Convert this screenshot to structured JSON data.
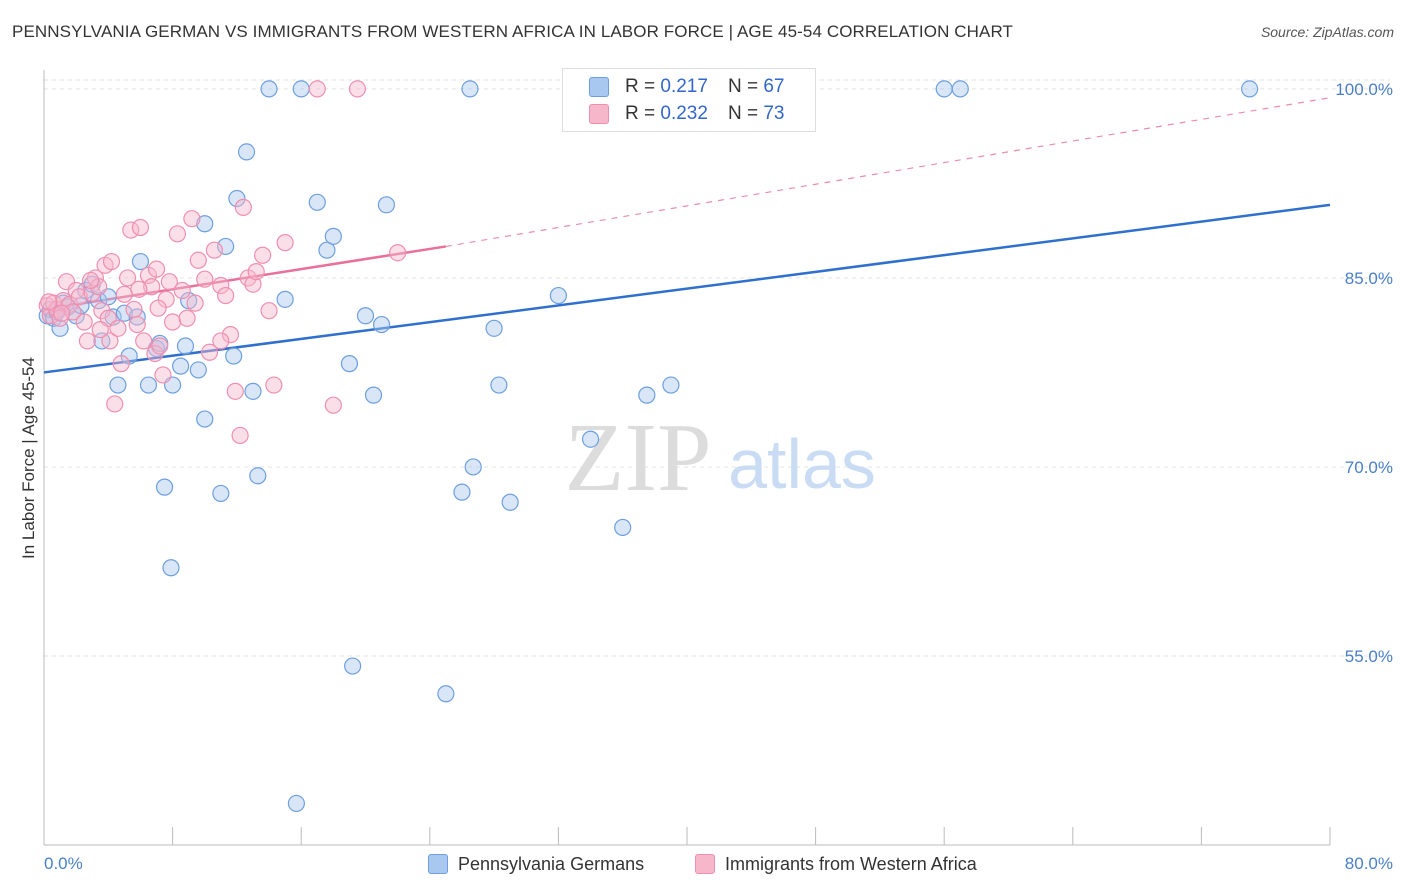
{
  "header": {
    "title": "PENNSYLVANIA GERMAN VS IMMIGRANTS FROM WESTERN AFRICA IN LABOR FORCE | AGE 45-54 CORRELATION CHART",
    "source": "Source: ZipAtlas.com"
  },
  "legend": {
    "r_label": "R =",
    "n_label": "N =",
    "series": [
      {
        "r": "0.217",
        "n": "67"
      },
      {
        "r": "0.232",
        "n": "73"
      }
    ]
  },
  "watermark": {
    "zip": "ZIP",
    "atlas": "atlas"
  },
  "colors": {
    "blue_fill": "#a9c8f0",
    "blue_stroke": "#6d9fe0",
    "blue_line": "#2f6fce",
    "pink_fill": "#f7b7cb",
    "pink_stroke": "#ef8fb0",
    "pink_line": "#e8709a",
    "tick_label": "#4a7fc8",
    "grid": "#e3e3e3"
  },
  "chart_data": {
    "type": "scatter",
    "title": "PENNSYLVANIA GERMAN VS IMMIGRANTS FROM WESTERN AFRICA IN LABOR FORCE | AGE 45-54 CORRELATION CHART",
    "xlabel": "",
    "ylabel": "In Labor Force | Age 45-54",
    "xlim": [
      0,
      80
    ],
    "ylim": [
      40,
      101.5
    ],
    "x_tick_labels": [
      "0.0%",
      "80.0%"
    ],
    "y_ticks": [
      55,
      70,
      85,
      100
    ],
    "y_tick_labels": [
      "55.0%",
      "70.0%",
      "85.0%",
      "100.0%"
    ],
    "grid": true,
    "legend_position": "bottom",
    "series": [
      {
        "name": "Pennsylvania Germans",
        "color": "#6d9fe0",
        "r": 0.217,
        "n": 67,
        "trend": {
          "x0": 0,
          "y0": 77.5,
          "x1": 80,
          "y1": 90.8,
          "style": "solid"
        },
        "points": [
          [
            0.2,
            82.0
          ],
          [
            0.4,
            82.5
          ],
          [
            0.6,
            81.8
          ],
          [
            0.8,
            82.3
          ],
          [
            1.0,
            81.0
          ],
          [
            1.2,
            83.0
          ],
          [
            1.5,
            82.7
          ],
          [
            2.0,
            82.0
          ],
          [
            2.3,
            82.8
          ],
          [
            2.6,
            84.0
          ],
          [
            3.0,
            84.5
          ],
          [
            3.4,
            83.2
          ],
          [
            3.6,
            80.0
          ],
          [
            4.0,
            83.5
          ],
          [
            4.3,
            81.9
          ],
          [
            4.6,
            76.5
          ],
          [
            5.0,
            82.2
          ],
          [
            5.3,
            78.8
          ],
          [
            5.8,
            81.9
          ],
          [
            6.0,
            86.3
          ],
          [
            6.5,
            76.5
          ],
          [
            7.0,
            79.4
          ],
          [
            7.2,
            79.8
          ],
          [
            7.5,
            68.4
          ],
          [
            7.9,
            62.0
          ],
          [
            8.0,
            76.5
          ],
          [
            8.5,
            78.0
          ],
          [
            8.8,
            79.6
          ],
          [
            9.0,
            83.2
          ],
          [
            9.6,
            77.7
          ],
          [
            10.0,
            73.8
          ],
          [
            10.0,
            89.3
          ],
          [
            11.0,
            67.9
          ],
          [
            11.3,
            87.5
          ],
          [
            11.8,
            78.8
          ],
          [
            12.0,
            91.3
          ],
          [
            12.6,
            95.0
          ],
          [
            13.0,
            76.0
          ],
          [
            13.3,
            69.3
          ],
          [
            14.0,
            100.0
          ],
          [
            15.0,
            83.3
          ],
          [
            15.7,
            43.3
          ],
          [
            16.0,
            100.0
          ],
          [
            17.0,
            91.0
          ],
          [
            17.6,
            87.2
          ],
          [
            18.0,
            88.3
          ],
          [
            19.0,
            78.2
          ],
          [
            19.2,
            54.2
          ],
          [
            20.0,
            82.0
          ],
          [
            20.5,
            75.7
          ],
          [
            21.0,
            81.3
          ],
          [
            21.3,
            90.8
          ],
          [
            25.0,
            52.0
          ],
          [
            26.0,
            68.0
          ],
          [
            26.5,
            100.0
          ],
          [
            26.7,
            70.0
          ],
          [
            28.0,
            81.0
          ],
          [
            28.3,
            76.5
          ],
          [
            29.0,
            67.2
          ],
          [
            32.0,
            83.6
          ],
          [
            34.0,
            72.2
          ],
          [
            36.0,
            65.2
          ],
          [
            37.5,
            75.7
          ],
          [
            39.0,
            76.5
          ],
          [
            56.0,
            100.0
          ],
          [
            57.0,
            100.0
          ],
          [
            75.0,
            100.0
          ]
        ]
      },
      {
        "name": "Immigrants from Western Africa",
        "color": "#ef8fb0",
        "r": 0.232,
        "n": 73,
        "trend": {
          "x0": 0,
          "y0": 82.5,
          "x1": 25,
          "y1": 87.5,
          "style": "solid",
          "dashed_to": {
            "x": 80,
            "y": 99.3
          }
        },
        "points": [
          [
            0.2,
            82.8
          ],
          [
            0.4,
            82.0
          ],
          [
            0.6,
            83.0
          ],
          [
            0.8,
            82.5
          ],
          [
            1.0,
            81.8
          ],
          [
            1.2,
            83.2
          ],
          [
            1.4,
            84.7
          ],
          [
            1.6,
            82.9
          ],
          [
            1.8,
            82.3
          ],
          [
            2.0,
            84.0
          ],
          [
            2.2,
            83.5
          ],
          [
            2.5,
            81.5
          ],
          [
            2.7,
            80.0
          ],
          [
            3.0,
            83.8
          ],
          [
            3.2,
            85.0
          ],
          [
            3.4,
            84.3
          ],
          [
            3.6,
            82.4
          ],
          [
            3.8,
            86.0
          ],
          [
            4.0,
            81.8
          ],
          [
            4.1,
            80.0
          ],
          [
            4.4,
            75.0
          ],
          [
            4.6,
            81.0
          ],
          [
            4.8,
            78.2
          ],
          [
            5.0,
            83.7
          ],
          [
            5.2,
            85.0
          ],
          [
            5.4,
            88.8
          ],
          [
            5.6,
            82.5
          ],
          [
            5.8,
            81.3
          ],
          [
            6.0,
            89.0
          ],
          [
            6.2,
            80.0
          ],
          [
            6.5,
            85.2
          ],
          [
            6.7,
            84.3
          ],
          [
            6.9,
            79.0
          ],
          [
            7.0,
            85.7
          ],
          [
            7.2,
            79.6
          ],
          [
            7.4,
            77.3
          ],
          [
            7.6,
            83.3
          ],
          [
            7.8,
            84.7
          ],
          [
            8.0,
            81.5
          ],
          [
            8.3,
            88.5
          ],
          [
            8.6,
            84.0
          ],
          [
            8.9,
            81.8
          ],
          [
            9.2,
            89.7
          ],
          [
            9.6,
            86.4
          ],
          [
            10.0,
            84.9
          ],
          [
            10.3,
            79.1
          ],
          [
            10.6,
            87.2
          ],
          [
            11.0,
            84.4
          ],
          [
            11.3,
            83.6
          ],
          [
            11.6,
            80.5
          ],
          [
            11.9,
            76.0
          ],
          [
            12.2,
            72.5
          ],
          [
            12.4,
            90.6
          ],
          [
            12.7,
            85.0
          ],
          [
            13.0,
            84.5
          ],
          [
            13.2,
            85.5
          ],
          [
            13.6,
            86.8
          ],
          [
            14.0,
            82.4
          ],
          [
            14.3,
            76.5
          ],
          [
            15.0,
            87.8
          ],
          [
            17.0,
            100.0
          ],
          [
            18.0,
            74.9
          ],
          [
            19.5,
            100.0
          ],
          [
            22.0,
            87.0
          ],
          [
            0.3,
            83.1
          ],
          [
            1.1,
            82.2
          ],
          [
            2.9,
            84.8
          ],
          [
            3.5,
            80.9
          ],
          [
            4.2,
            86.3
          ],
          [
            5.9,
            84.1
          ],
          [
            7.1,
            82.6
          ],
          [
            9.4,
            83.0
          ],
          [
            11.0,
            80.0
          ]
        ]
      }
    ]
  }
}
